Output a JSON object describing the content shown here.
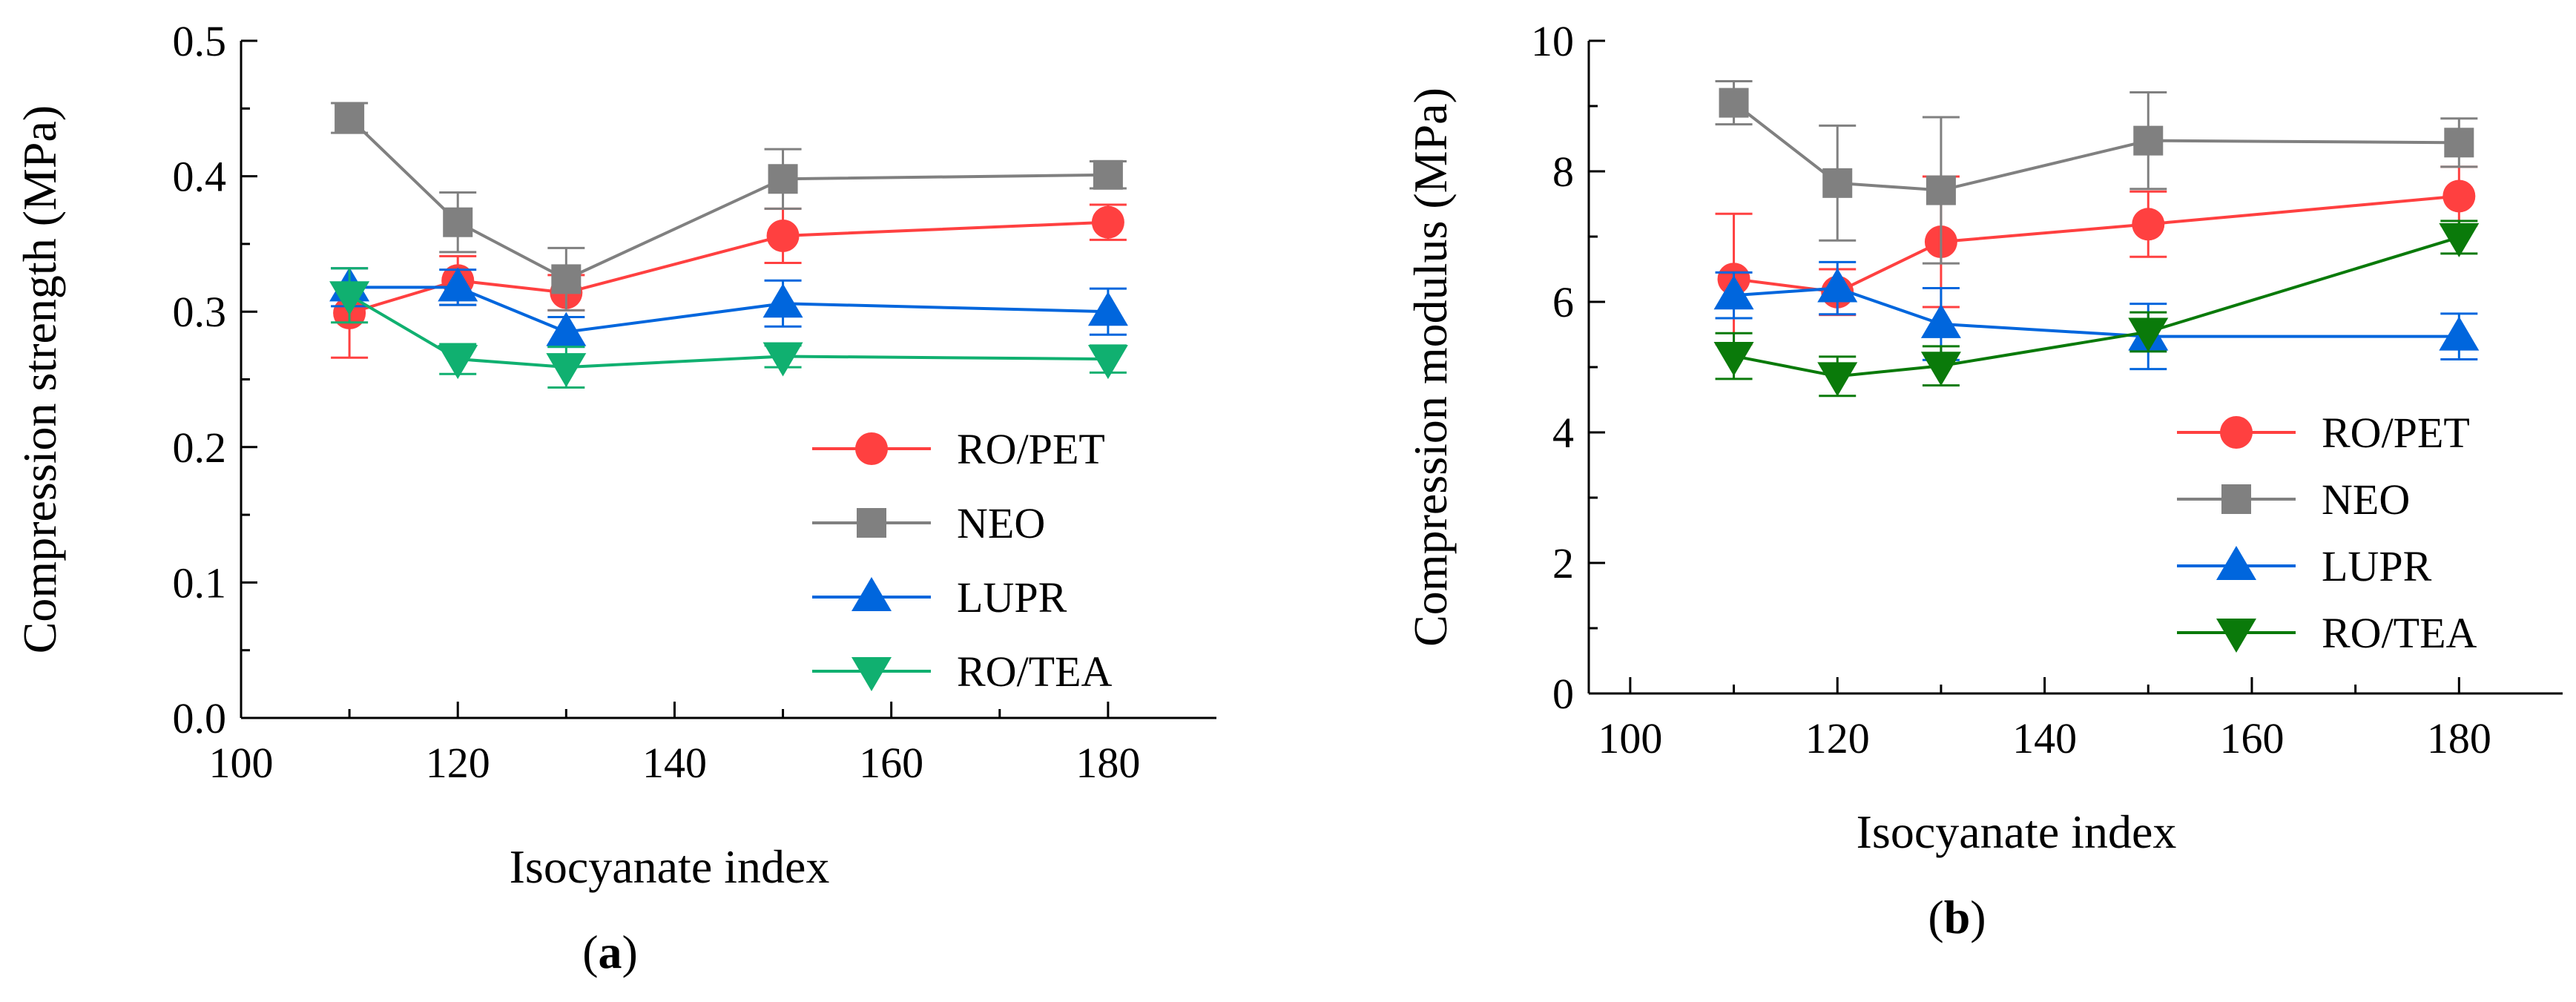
{
  "chart_data": [
    {
      "type": "line",
      "panel_label": "a",
      "title": "",
      "xlabel": "Isocyanate index",
      "ylabel": "Compression strength (MPa)",
      "xlim": [
        100,
        190
      ],
      "ylim": [
        0.0,
        0.5
      ],
      "xticks": [
        100,
        120,
        140,
        160,
        180
      ],
      "xtick_labels": [
        "100",
        "120",
        "140",
        "160",
        "180"
      ],
      "yticks": [
        0.0,
        0.1,
        0.2,
        0.3,
        0.4,
        0.5
      ],
      "ytick_labels": [
        "0.0",
        "0.1",
        "0.2",
        "0.3",
        "0.4",
        "0.5"
      ],
      "grid": false,
      "legend_position": "lower-right",
      "x": [
        110,
        120,
        130,
        150,
        180
      ],
      "series": [
        {
          "name": "RO/PET",
          "color": "#ff4040",
          "marker": "circle",
          "values": [
            0.299,
            0.323,
            0.314,
            0.356,
            0.366
          ],
          "errors": [
            0.033,
            0.018,
            0.013,
            0.02,
            0.013
          ]
        },
        {
          "name": "NEO",
          "color": "#808080",
          "marker": "square",
          "values": [
            0.443,
            0.366,
            0.324,
            0.398,
            0.401
          ],
          "errors": [
            0.011,
            0.022,
            0.023,
            0.022,
            0.01
          ]
        },
        {
          "name": "LUPR",
          "color": "#0066dd",
          "marker": "triangle-up",
          "values": [
            0.318,
            0.318,
            0.285,
            0.306,
            0.3
          ],
          "errors": [
            0.014,
            0.013,
            0.011,
            0.017,
            0.017
          ]
        },
        {
          "name": "RO/TEA",
          "color": "#10b070",
          "marker": "triangle-down",
          "values": [
            0.312,
            0.265,
            0.259,
            0.267,
            0.265
          ],
          "errors": [
            0.02,
            0.011,
            0.015,
            0.008,
            0.01
          ]
        }
      ]
    },
    {
      "type": "line",
      "panel_label": "b",
      "title": "",
      "xlabel": "Isocyanate index",
      "ylabel": "Compression modulus (MPa)",
      "xlim": [
        96,
        190
      ],
      "ylim": [
        0,
        10
      ],
      "xticks": [
        100,
        120,
        140,
        160,
        180
      ],
      "xtick_labels": [
        "100",
        "120",
        "140",
        "160",
        "180"
      ],
      "yticks": [
        0,
        2,
        4,
        6,
        8,
        10
      ],
      "ytick_labels": [
        "0",
        "2",
        "4",
        "6",
        "8",
        "10"
      ],
      "grid": false,
      "legend_position": "lower-right",
      "x": [
        110,
        120,
        130,
        150,
        180
      ],
      "series": [
        {
          "name": "RO/PET",
          "color": "#ff4040",
          "marker": "circle",
          "values": [
            6.35,
            6.15,
            6.92,
            7.19,
            7.62
          ],
          "errors": [
            1.0,
            0.35,
            1.0,
            0.5,
            0.45
          ]
        },
        {
          "name": "NEO",
          "color": "#808080",
          "marker": "square",
          "values": [
            9.05,
            7.82,
            7.71,
            8.47,
            8.44
          ],
          "errors": [
            0.33,
            0.88,
            1.12,
            0.74,
            0.37
          ]
        },
        {
          "name": "LUPR",
          "color": "#0066dd",
          "marker": "triangle-up",
          "values": [
            6.1,
            6.21,
            5.66,
            5.47,
            5.47
          ],
          "errors": [
            0.35,
            0.4,
            0.55,
            0.5,
            0.35
          ]
        },
        {
          "name": "RO/TEA",
          "color": "#0a7a0a",
          "marker": "triangle-down",
          "values": [
            5.17,
            4.86,
            5.02,
            5.54,
            6.99
          ],
          "errors": [
            0.35,
            0.3,
            0.3,
            0.3,
            0.25
          ]
        }
      ]
    }
  ]
}
